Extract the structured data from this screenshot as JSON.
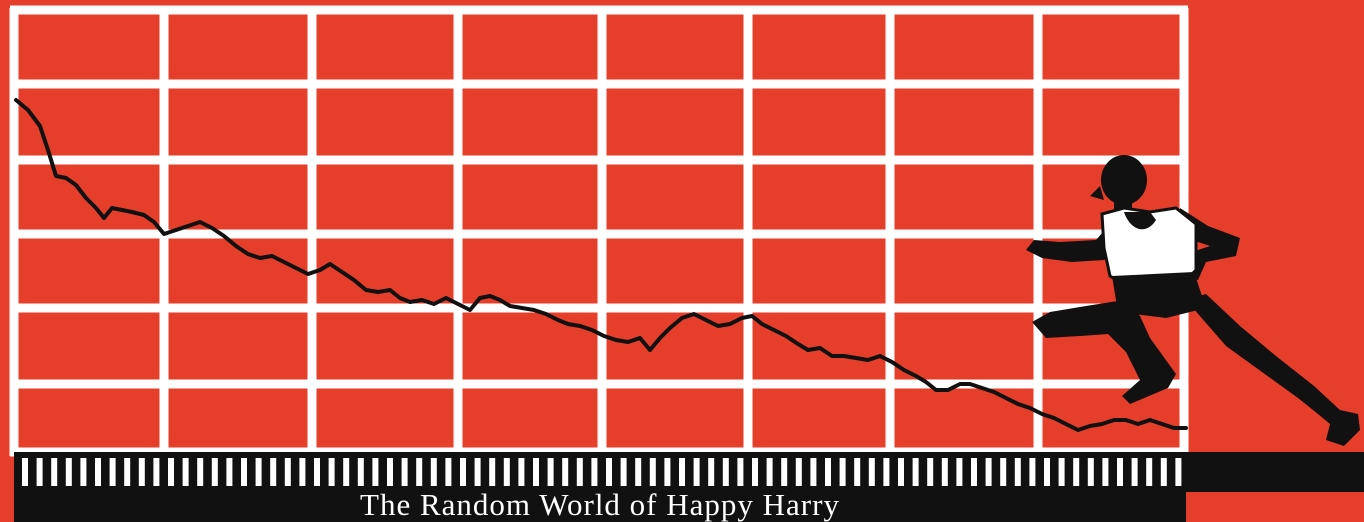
{
  "cover": {
    "title": "The Random World of Happy Harry",
    "colors": {
      "background": "#e53e2b",
      "grid": "#ffffff",
      "line": "#111111",
      "band": "#111111"
    },
    "figure_icon": "running-man-silhouette"
  }
}
